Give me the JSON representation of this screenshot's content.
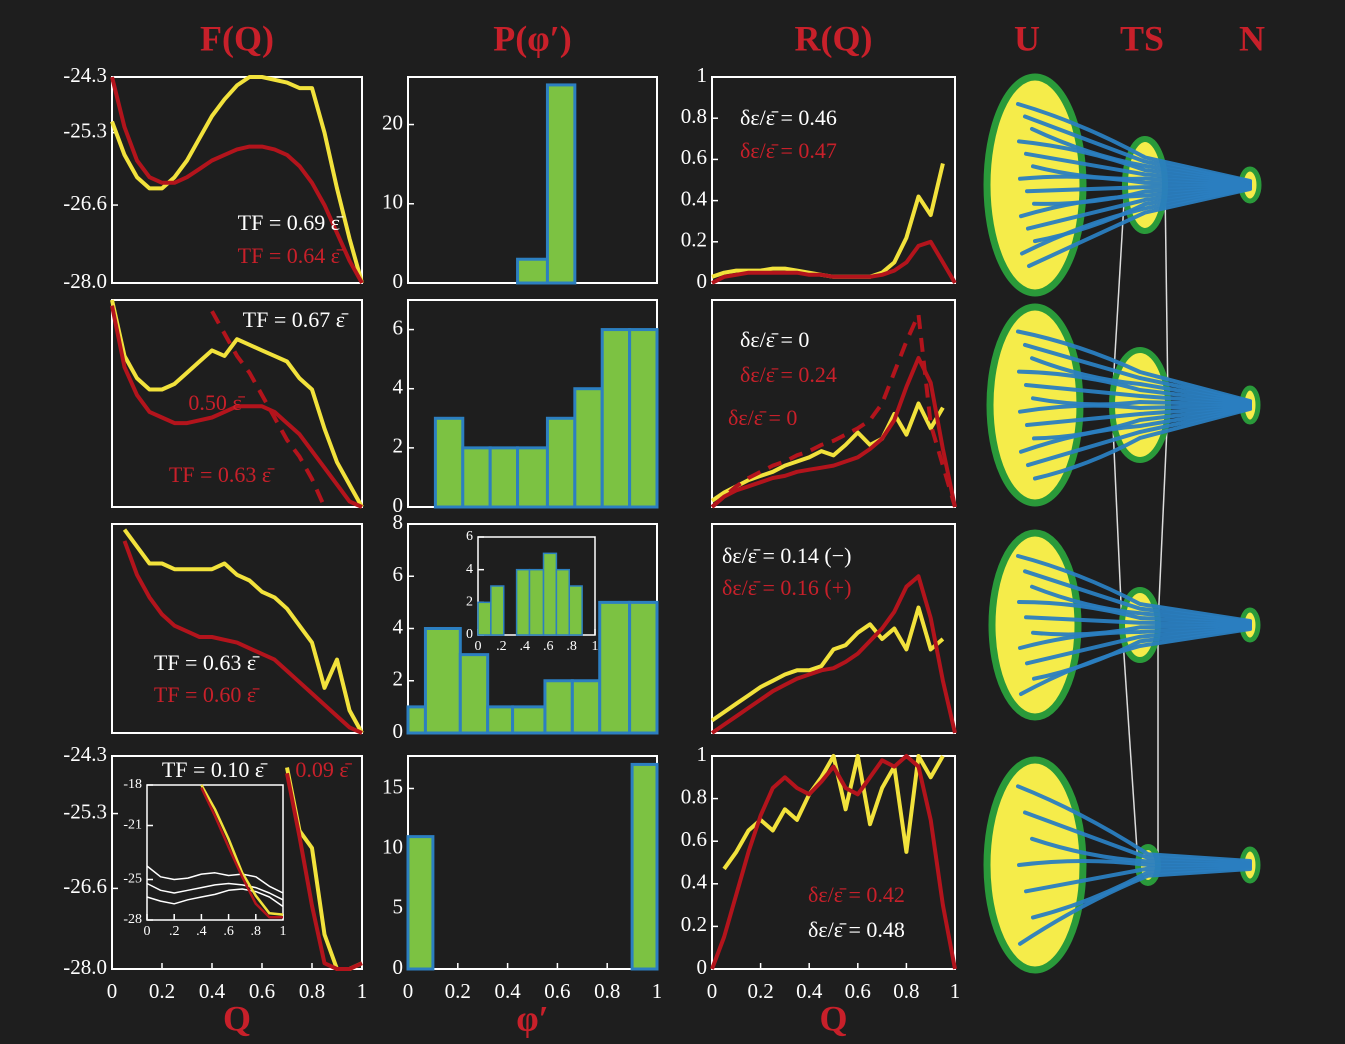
{
  "chart_data": [
    {
      "type": "line",
      "title": "F(Q)",
      "xlim": [
        0,
        1
      ],
      "ylim": [
        -28,
        -24.3
      ],
      "yticks": [
        -24.3,
        -25.3,
        -26.6,
        {
          "value": -28,
          "label": "-28.0"
        }
      ],
      "x": [
        0,
        0.05,
        0.1,
        0.15,
        0.2,
        0.25,
        0.3,
        0.35,
        0.4,
        0.45,
        0.5,
        0.55,
        0.6,
        0.65,
        0.7,
        0.75,
        0.8,
        0.85,
        0.9,
        0.95,
        1
      ],
      "series": [
        {
          "color": "#f2e23c",
          "values": [
            -25.1,
            -25.7,
            -26.1,
            -26.3,
            -26.3,
            -26.1,
            -25.8,
            -25.4,
            -25.0,
            -24.7,
            -24.45,
            -24.3,
            -24.3,
            -24.35,
            -24.4,
            -24.5,
            -24.5,
            -25.3,
            -26.3,
            -27.2,
            -28.0
          ]
        },
        {
          "color": "#b3141c",
          "values": [
            -24.3,
            -25.2,
            -25.8,
            -26.1,
            -26.2,
            -26.2,
            -26.1,
            -25.95,
            -25.8,
            -25.7,
            -25.6,
            -25.55,
            -25.55,
            -25.6,
            -25.7,
            -25.9,
            -26.2,
            -26.6,
            -27.1,
            -27.6,
            -28.0
          ]
        }
      ],
      "annotations": [
        {
          "text": "TF = 0.69 ε̄",
          "color": "#ffffff"
        },
        {
          "text": "TF = 0.64 ε̄",
          "color": "#c8202a"
        }
      ]
    },
    {
      "type": "line",
      "xlim": [
        0,
        1
      ],
      "ylim": [
        -28,
        -24.3
      ],
      "x": [
        0,
        0.05,
        0.1,
        0.15,
        0.2,
        0.25,
        0.3,
        0.35,
        0.4,
        0.45,
        0.5,
        0.55,
        0.6,
        0.65,
        0.7,
        0.75,
        0.8,
        0.85,
        0.9,
        0.95,
        1
      ],
      "series": [
        {
          "color": "#f2e23c",
          "values": [
            -24.3,
            -25.3,
            -25.7,
            -25.9,
            -25.9,
            -25.8,
            -25.6,
            -25.4,
            -25.2,
            -25.3,
            -25.0,
            -25.1,
            -25.2,
            -25.3,
            -25.4,
            -25.7,
            -25.9,
            -26.6,
            -27.2,
            -27.6,
            -28.0
          ]
        },
        {
          "color": "#b3141c",
          "values": [
            -24.4,
            -25.5,
            -26.0,
            -26.3,
            -26.4,
            -26.5,
            -26.5,
            -26.45,
            -26.4,
            -26.3,
            -26.2,
            -26.2,
            -26.2,
            -26.3,
            -26.5,
            -26.7,
            -27.0,
            -27.3,
            -27.6,
            -27.9,
            -28.0
          ]
        },
        {
          "color": "#b3141c",
          "dash": true,
          "values": [
            null,
            null,
            null,
            null,
            null,
            null,
            null,
            null,
            -24.5,
            -24.9,
            -25.3,
            -25.6,
            -26.0,
            -26.4,
            -26.8,
            -27.1,
            -27.5,
            -28.0,
            null,
            null,
            null
          ]
        }
      ],
      "annotations": [
        {
          "text": "TF = 0.67 ε̄",
          "color": "#ffffff"
        },
        {
          "text": "0.50 ε̄",
          "color": "#c8202a"
        },
        {
          "text": "TF = 0.63 ε̄",
          "color": "#c8202a"
        }
      ]
    },
    {
      "type": "line",
      "xlim": [
        0,
        1
      ],
      "ylim": [
        -28,
        -24.3
      ],
      "x": [
        0,
        0.05,
        0.1,
        0.15,
        0.2,
        0.25,
        0.3,
        0.35,
        0.4,
        0.45,
        0.5,
        0.55,
        0.6,
        0.65,
        0.7,
        0.75,
        0.8,
        0.85,
        0.9,
        0.95,
        1
      ],
      "series": [
        {
          "color": "#f2e23c",
          "values": [
            null,
            -24.4,
            -24.7,
            -25.0,
            -25.0,
            -25.1,
            -25.1,
            -25.1,
            -25.1,
            -25.0,
            -25.2,
            -25.3,
            -25.5,
            -25.6,
            -25.8,
            -26.1,
            -26.4,
            -27.2,
            -26.7,
            -27.6,
            -28.0
          ]
        },
        {
          "color": "#b3141c",
          "values": [
            null,
            -24.6,
            -25.2,
            -25.6,
            -25.9,
            -26.1,
            -26.2,
            -26.3,
            -26.3,
            -26.35,
            -26.4,
            -26.5,
            -26.6,
            -26.7,
            -26.9,
            -27.1,
            -27.3,
            -27.5,
            -27.7,
            -27.9,
            -28.0
          ]
        }
      ],
      "annotations": [
        {
          "text": "TF = 0.63 ε̄",
          "color": "#ffffff"
        },
        {
          "text": "TF = 0.60 ε̄",
          "color": "#c8202a"
        }
      ]
    },
    {
      "type": "line",
      "xlabel": "Q",
      "xlim": [
        0,
        1
      ],
      "ylim": [
        -28,
        -24.3
      ],
      "yticks": [
        -24.3,
        -25.3,
        -26.6,
        {
          "value": -28,
          "label": "-28.0"
        }
      ],
      "xticks": [
        0,
        0.2,
        0.4,
        0.6,
        0.8,
        1
      ],
      "x": [
        0.65,
        0.7,
        0.75,
        0.8,
        0.85,
        0.9,
        0.95,
        1
      ],
      "series": [
        {
          "color": "#f2e23c",
          "values": [
            null,
            -24.5,
            -25.6,
            -25.9,
            -27.4,
            -28.0,
            -28.0,
            -27.9
          ]
        },
        {
          "color": "#b3141c",
          "values": [
            null,
            -24.6,
            -25.7,
            -26.9,
            -27.9,
            -28.0,
            -28.0,
            -27.9
          ]
        }
      ],
      "annotations": [
        {
          "text": "TF = 0.10 ε̄",
          "color": "#ffffff"
        },
        {
          "text": "0.09 ε̄",
          "color": "#c8202a"
        }
      ],
      "inset": {
        "type": "line",
        "xlim": [
          0,
          1
        ],
        "ylim": [
          -28,
          -18
        ],
        "yticks": [
          -18,
          -21,
          -25,
          -28
        ],
        "xticks": [
          0,
          {
            "value": 0.2,
            "label": ".2"
          },
          {
            "value": 0.4,
            "label": ".4"
          },
          {
            "value": 0.6,
            "label": ".6"
          },
          {
            "value": 0.8,
            "label": ".8"
          },
          1
        ],
        "x": [
          0,
          0.1,
          0.2,
          0.3,
          0.4,
          0.5,
          0.6,
          0.7,
          0.8,
          0.9,
          1
        ],
        "series": [
          {
            "color": "#ffffff",
            "thin": true,
            "values": [
              -24,
              -24.8,
              -25,
              -24.9,
              -24.6,
              -24.5,
              -24.7,
              -24.6,
              -24.8,
              -25.5,
              -26
            ]
          },
          {
            "color": "#ffffff",
            "thin": true,
            "values": [
              -25.3,
              -25.8,
              -26,
              -25.8,
              -25.6,
              -25.4,
              -25.3,
              -25.4,
              -25.6,
              -26,
              -26.5
            ]
          },
          {
            "color": "#ffffff",
            "thin": true,
            "values": [
              -26.3,
              -26.6,
              -26.8,
              -26.5,
              -26.3,
              -26.1,
              -25.8,
              -25.7,
              -25.9,
              -26.3,
              -27
            ]
          },
          {
            "color": "#f2e23c",
            "values": [
              null,
              null,
              null,
              null,
              -18,
              -19.8,
              -22,
              -24.5,
              -26.2,
              -27.5,
              -27.6
            ]
          },
          {
            "color": "#b3141c",
            "values": [
              null,
              null,
              null,
              null,
              -18.2,
              -20.3,
              -22.6,
              -24.8,
              -26.8,
              -27.8,
              -27.8
            ]
          }
        ]
      }
    },
    {
      "type": "histogram",
      "title": "P(φ′)",
      "color": "#7cc242",
      "edgecolor": "#2c7fc0",
      "xlim": [
        0,
        1
      ],
      "ylim": [
        0,
        26
      ],
      "yticks": [
        0,
        10,
        20
      ],
      "bins": [
        0,
        0.11,
        0.22,
        0.33,
        0.44,
        0.56,
        0.67,
        0.78,
        0.89,
        1
      ],
      "values": [
        0,
        0,
        0,
        0,
        3,
        25,
        0,
        0,
        0
      ]
    },
    {
      "type": "histogram",
      "color": "#7cc242",
      "edgecolor": "#2c7fc0",
      "xlim": [
        0,
        1
      ],
      "ylim": [
        0,
        7
      ],
      "yticks": [
        0,
        2,
        4,
        6
      ],
      "bins": [
        0,
        0.11,
        0.22,
        0.33,
        0.44,
        0.56,
        0.67,
        0.78,
        0.89,
        1
      ],
      "values": [
        0,
        3,
        2,
        2,
        2,
        3,
        4,
        6,
        6
      ]
    },
    {
      "type": "histogram",
      "color": "#7cc242",
      "edgecolor": "#2c7fc0",
      "xlim": [
        0,
        1
      ],
      "ylim": [
        0,
        8
      ],
      "yticks": [
        0,
        2,
        4,
        6,
        8
      ],
      "bins": [
        0,
        0.07,
        0.21,
        0.32,
        0.42,
        0.55,
        0.66,
        0.77,
        0.89,
        1
      ],
      "values": [
        1,
        4,
        3,
        1,
        1,
        2,
        2,
        5,
        5
      ],
      "inset": {
        "type": "histogram",
        "color": "#7cc242",
        "edgecolor": "#2c7fc0",
        "xlim": [
          0,
          1
        ],
        "ylim": [
          0,
          6
        ],
        "yticks": [
          0,
          2,
          4,
          6
        ],
        "xticks": [
          0,
          {
            "value": 0.2,
            "label": ".2"
          },
          {
            "value": 0.4,
            "label": ".4"
          },
          {
            "value": 0.6,
            "label": ".6"
          },
          {
            "value": 0.8,
            "label": ".8"
          },
          1
        ],
        "bins": [
          0,
          0.11,
          0.22,
          0.33,
          0.44,
          0.56,
          0.67,
          0.78,
          0.89,
          1
        ],
        "values": [
          2,
          3,
          0,
          4,
          4,
          5,
          4,
          3,
          0
        ]
      }
    },
    {
      "type": "histogram",
      "xlabel": "φ′",
      "color": "#7cc242",
      "edgecolor": "#2c7fc0",
      "xlim": [
        0,
        1
      ],
      "ylim": [
        0,
        17.7
      ],
      "yticks": [
        0,
        5,
        10,
        15
      ],
      "xticks": [
        0,
        0.2,
        0.4,
        0.6,
        0.8,
        1
      ],
      "bins": [
        0,
        0.1,
        0.9,
        1
      ],
      "values": [
        11,
        0,
        17
      ]
    },
    {
      "type": "line",
      "title": "R(Q)",
      "xlim": [
        0,
        1
      ],
      "ylim": [
        0,
        1
      ],
      "yticks": [
        0,
        0.2,
        0.4,
        0.6,
        0.8,
        1
      ],
      "x": [
        0,
        0.05,
        0.1,
        0.15,
        0.2,
        0.25,
        0.3,
        0.35,
        0.4,
        0.45,
        0.5,
        0.55,
        0.6,
        0.65,
        0.7,
        0.75,
        0.8,
        0.85,
        0.9,
        0.95,
        1
      ],
      "series": [
        {
          "color": "#f2e23c",
          "values": [
            0.03,
            0.05,
            0.06,
            0.06,
            0.06,
            0.07,
            0.07,
            0.06,
            0.05,
            0.04,
            0.03,
            0.03,
            0.03,
            0.03,
            0.05,
            0.1,
            0.22,
            0.42,
            0.33,
            0.58,
            null
          ]
        },
        {
          "color": "#b3141c",
          "values": [
            0,
            0.03,
            0.04,
            0.05,
            0.05,
            0.05,
            0.05,
            0.05,
            0.04,
            0.04,
            0.03,
            0.03,
            0.03,
            0.03,
            0.04,
            0.06,
            0.1,
            0.18,
            0.2,
            0.1,
            0
          ]
        }
      ],
      "annotations": [
        {
          "text": "δε/ε̄ = 0.46",
          "color": "#ffffff"
        },
        {
          "text": "δε/ε̄ = 0.47",
          "color": "#c8202a"
        }
      ]
    },
    {
      "type": "line",
      "xlim": [
        0,
        1
      ],
      "ylim": [
        0,
        1
      ],
      "x": [
        0,
        0.05,
        0.1,
        0.15,
        0.2,
        0.25,
        0.3,
        0.35,
        0.4,
        0.45,
        0.5,
        0.55,
        0.6,
        0.65,
        0.7,
        0.75,
        0.8,
        0.85,
        0.9,
        0.95,
        1
      ],
      "series": [
        {
          "color": "#f2e23c",
          "values": [
            0.03,
            0.07,
            0.1,
            0.13,
            0.15,
            0.17,
            0.2,
            0.22,
            0.24,
            0.27,
            0.25,
            0.3,
            0.36,
            0.3,
            0.33,
            0.45,
            0.35,
            0.5,
            0.38,
            0.48,
            null
          ]
        },
        {
          "color": "#b3141c",
          "values": [
            0,
            0.05,
            0.08,
            0.1,
            0.12,
            0.14,
            0.15,
            0.17,
            0.18,
            0.19,
            0.2,
            0.22,
            0.24,
            0.28,
            0.33,
            0.42,
            0.58,
            0.72,
            0.6,
            0.28,
            0
          ]
        },
        {
          "color": "#b3141c",
          "dash": true,
          "values": [
            0,
            0.05,
            0.1,
            0.14,
            0.17,
            0.2,
            0.22,
            0.25,
            0.27,
            0.3,
            0.32,
            0.35,
            0.38,
            0.42,
            0.5,
            0.65,
            0.8,
            0.93,
            0.4,
            0.2,
            0
          ]
        }
      ],
      "annotations": [
        {
          "text": "δε/ε̄ = 0",
          "color": "#ffffff"
        },
        {
          "text": "δε/ε̄ = 0.24",
          "color": "#c8202a"
        },
        {
          "text": "δε/ε̄ = 0",
          "color": "#c8202a"
        }
      ]
    },
    {
      "type": "line",
      "xlim": [
        0,
        1
      ],
      "ylim": [
        0,
        1
      ],
      "x": [
        0,
        0.05,
        0.1,
        0.15,
        0.2,
        0.25,
        0.3,
        0.35,
        0.4,
        0.45,
        0.5,
        0.55,
        0.6,
        0.65,
        0.7,
        0.75,
        0.8,
        0.85,
        0.9,
        0.95,
        1
      ],
      "series": [
        {
          "color": "#f2e23c",
          "values": [
            0.06,
            0.1,
            0.14,
            0.18,
            0.22,
            0.25,
            0.28,
            0.3,
            0.3,
            0.32,
            0.4,
            0.42,
            0.48,
            0.52,
            0.45,
            0.5,
            0.4,
            0.6,
            0.4,
            0.45,
            null
          ]
        },
        {
          "color": "#b3141c",
          "values": [
            0,
            0.04,
            0.08,
            0.12,
            0.16,
            0.2,
            0.23,
            0.26,
            0.28,
            0.3,
            0.31,
            0.34,
            0.38,
            0.44,
            0.5,
            0.58,
            0.7,
            0.75,
            0.55,
            0.25,
            0
          ]
        }
      ],
      "annotations": [
        {
          "text": "δε/ε̄ = 0.14 (−)",
          "color": "#ffffff"
        },
        {
          "text": "δε/ε̄ = 0.16 (+)",
          "color": "#c8202a"
        }
      ]
    },
    {
      "type": "line",
      "xlabel": "Q",
      "xlim": [
        0,
        1
      ],
      "ylim": [
        0,
        1
      ],
      "yticks": [
        0,
        0.2,
        0.4,
        0.6,
        0.8,
        1
      ],
      "xticks": [
        0,
        0.2,
        0.4,
        0.6,
        0.8,
        1
      ],
      "x": [
        0,
        0.05,
        0.1,
        0.15,
        0.2,
        0.25,
        0.3,
        0.35,
        0.4,
        0.45,
        0.5,
        0.55,
        0.6,
        0.65,
        0.7,
        0.75,
        0.8,
        0.85,
        0.9,
        0.95,
        1
      ],
      "series": [
        {
          "color": "#f2e23c",
          "values": [
            null,
            0.47,
            0.55,
            0.65,
            0.7,
            0.65,
            0.75,
            0.7,
            0.82,
            0.9,
            1.0,
            0.75,
            1.0,
            0.68,
            0.85,
            0.95,
            0.55,
            1.0,
            0.9,
            1.0,
            null
          ]
        },
        {
          "color": "#b3141c",
          "values": [
            0,
            0.15,
            0.35,
            0.55,
            0.72,
            0.85,
            0.9,
            0.85,
            0.82,
            0.88,
            0.95,
            0.85,
            0.82,
            0.9,
            0.98,
            0.95,
            1.0,
            0.95,
            0.7,
            0.3,
            0
          ]
        }
      ],
      "annotations": [
        {
          "text": "δε/ε̄ = 0.42",
          "color": "#c8202a"
        },
        {
          "text": "δε/ε̄ = 0.48",
          "color": "#ffffff"
        }
      ]
    }
  ],
  "diagram": {
    "labels": [
      "U",
      "TS",
      "N"
    ]
  }
}
